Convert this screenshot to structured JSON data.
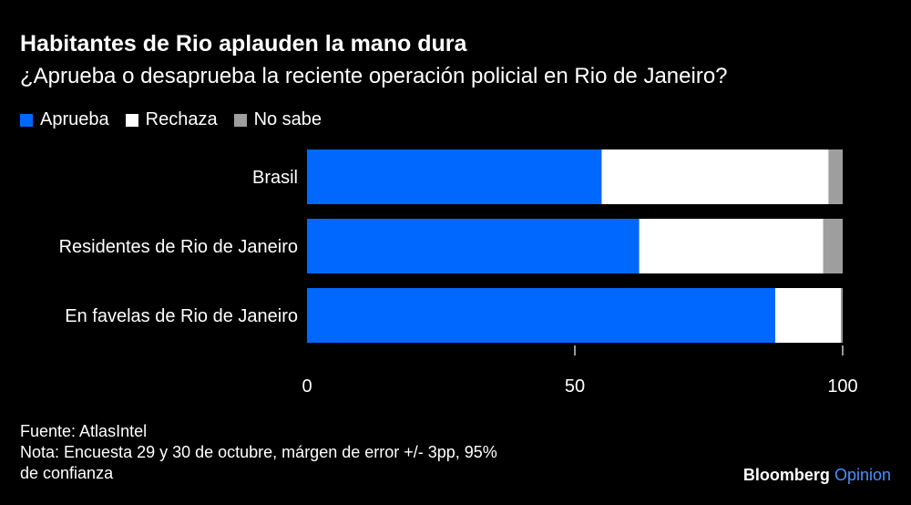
{
  "title": "Habitantes de Rio aplauden la mano dura",
  "subtitle": "¿Aprueba o desaprueba la reciente operación policial en Rio de Janeiro?",
  "footer": {
    "source": "Fuente: AtlasIntel",
    "note1": "Nota: Encuesta 29 y 30 de octubre, márgen de error +/- 3pp, 95%",
    "note2": "de confianza"
  },
  "brand": {
    "name": "Bloomberg",
    "sub": "Opinion"
  },
  "chart_data": {
    "type": "bar",
    "orientation": "horizontal",
    "stacked": true,
    "categories": [
      "Brasil",
      "Residentes de Rio de Janeiro",
      "En favelas de Rio de Janeiro"
    ],
    "series": [
      {
        "name": "Aprueba",
        "color": "#0068ff",
        "values": [
          55,
          62,
          87.4
        ]
      },
      {
        "name": "Rechaza",
        "color": "#ffffff",
        "values": [
          42.4,
          34.4,
          12.3
        ]
      },
      {
        "name": "No sabe",
        "color": "#9e9e9e",
        "values": [
          2.6,
          3.6,
          0.3
        ]
      }
    ],
    "xlim": [
      0,
      100
    ],
    "xticks": [
      0,
      50,
      100
    ],
    "legend": "top-left",
    "grid": false
  }
}
